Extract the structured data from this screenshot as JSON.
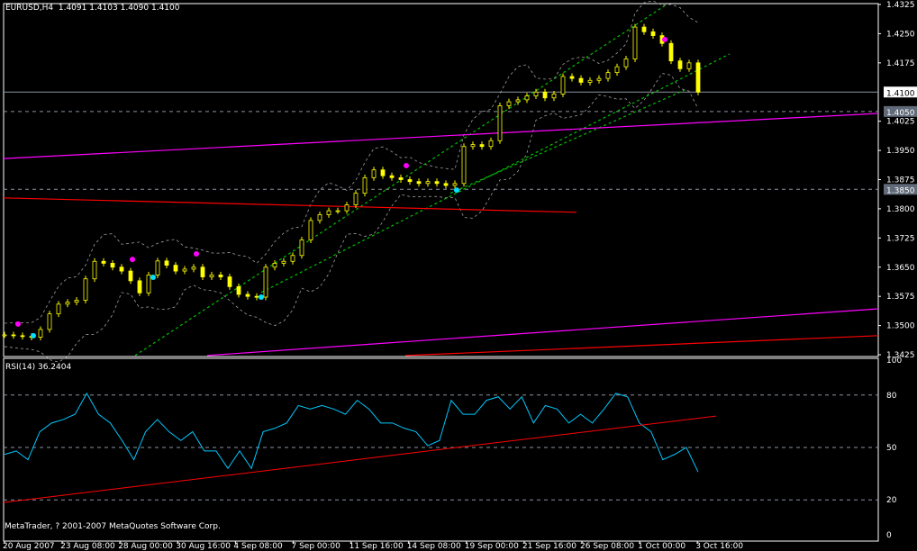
{
  "header": {
    "symbol": "EURUSD,H4",
    "open": "1.4091",
    "high": "1.4103",
    "low": "1.4090",
    "close": "1.4100"
  },
  "rsi_header": {
    "label": "RSI(14)",
    "value": "36.2404"
  },
  "copyright": "MetaTrader, ? 2001-2007 MetaQuotes Software Corp.",
  "colors": {
    "background": "#000000",
    "candle": "#ffff00",
    "grid": "#ffffff",
    "bands": "#a0a0a0",
    "channel": "#00c000",
    "support_magenta": "#ff00ff",
    "trend_red": "#ff0000",
    "rsi": "#00c8ff",
    "dot_magenta": "#ff00ff",
    "dot_cyan": "#00e0ff"
  },
  "chart_data": [
    {
      "type": "candlestick",
      "symbol": "EURUSD",
      "timeframe": "H4",
      "ylim": [
        1.3425,
        1.4325
      ],
      "y_ticks": [
        "1.4325",
        "1.4250",
        "1.4175",
        "1.4025",
        "1.3950",
        "1.3875",
        "1.3800",
        "1.3725",
        "1.3650",
        "1.3575",
        "1.3500",
        "1.3425"
      ],
      "price_labels": {
        "current": "1.4100",
        "level_1": "1.4050",
        "level_2": "1.3850"
      },
      "x_ticks": [
        "20 Aug 2007",
        "23 Aug 08:00",
        "28 Aug 00:00",
        "30 Aug 16:00",
        "4 Sep 08:00",
        "7 Sep 00:00",
        "11 Sep 16:00",
        "14 Sep 08:00",
        "19 Sep 00:00",
        "21 Sep 16:00",
        "26 Sep 08:00",
        "1 Oct 00:00",
        "3 Oct 16:00"
      ],
      "closes": [
        1.3476,
        1.3474,
        1.3472,
        1.347,
        1.349,
        1.353,
        1.3555,
        1.356,
        1.3565,
        1.362,
        1.3665,
        1.366,
        1.365,
        1.364,
        1.3615,
        1.3584,
        1.363,
        1.3666,
        1.3655,
        1.364,
        1.3645,
        1.365,
        1.3625,
        1.363,
        1.3625,
        1.36,
        1.358,
        1.3575,
        1.3573,
        1.365,
        1.366,
        1.3665,
        1.368,
        1.372,
        1.377,
        1.3785,
        1.3795,
        1.3795,
        1.381,
        1.384,
        1.388,
        1.39,
        1.3885,
        1.388,
        1.3875,
        1.387,
        1.3865,
        1.387,
        1.3865,
        1.386,
        1.3865,
        1.396,
        1.3965,
        1.396,
        1.3975,
        1.4065,
        1.4075,
        1.408,
        1.409,
        1.41,
        1.4085,
        1.4095,
        1.414,
        1.4135,
        1.4125,
        1.413,
        1.4135,
        1.415,
        1.4165,
        1.4185,
        1.4267,
        1.4255,
        1.4245,
        1.4225,
        1.418,
        1.416,
        1.4175,
        1.41
      ],
      "horizontal_levels": [
        {
          "price": 1.41,
          "style": "solid"
        },
        {
          "price": 1.405,
          "style": "dashed"
        },
        {
          "price": 1.385,
          "style": "dashed"
        }
      ],
      "trendlines": [
        {
          "color": "channel",
          "dashed": true,
          "from": [
            14.5,
            1.3423
          ],
          "to": [
            73.5,
            1.4325
          ]
        },
        {
          "color": "channel",
          "dashed": true,
          "from": [
            28.5,
            1.3585
          ],
          "to": [
            80.5,
            1.4198
          ]
        },
        {
          "color": "channel",
          "dashed": true,
          "from": [
            49.5,
            1.384
          ],
          "to": [
            75.5,
            1.4105
          ]
        },
        {
          "color": "support_magenta",
          "dashed": false,
          "from": [
            -0.1,
            1.3929
          ],
          "to": [
            97,
            1.4045
          ]
        },
        {
          "color": "support_magenta",
          "dashed": false,
          "from": [
            22.5,
            1.3423
          ],
          "to": [
            97,
            1.3543
          ]
        },
        {
          "color": "trend_red",
          "dashed": false,
          "from": [
            -0.1,
            1.3828
          ],
          "to": [
            63.5,
            1.3791
          ]
        },
        {
          "color": "trend_red",
          "dashed": false,
          "from": [
            44.5,
            1.3423
          ],
          "to": [
            97,
            1.3474
          ]
        }
      ],
      "fractals_up": [
        [
          1.5,
          1.3504
        ],
        [
          14.2,
          1.367
        ],
        [
          21.3,
          1.3684
        ],
        [
          44.6,
          1.3911
        ],
        [
          73.3,
          1.4235
        ]
      ],
      "fractals_down": [
        [
          3.2,
          1.3474
        ],
        [
          16.5,
          1.3624
        ],
        [
          28.5,
          1.3573
        ],
        [
          50.2,
          1.3848
        ]
      ]
    },
    {
      "type": "line",
      "name": "RSI(14)",
      "ylim": [
        0,
        100
      ],
      "y_ticks": [
        "100",
        "80",
        "50",
        "20",
        "0"
      ],
      "levels": [
        80,
        50,
        20
      ],
      "values": [
        46,
        48,
        43,
        59,
        64,
        66,
        69,
        81,
        69,
        64,
        54,
        43,
        59,
        66,
        59,
        54,
        59,
        48,
        48,
        38,
        48,
        38,
        59,
        61,
        64,
        74,
        72,
        74,
        72,
        69,
        77,
        72,
        64,
        64,
        61,
        59,
        51,
        54,
        77,
        69,
        69,
        77,
        79,
        72,
        79,
        64,
        74,
        72,
        64,
        69,
        64,
        72,
        81,
        79,
        64,
        59,
        43,
        46,
        50,
        36
      ],
      "trendline": {
        "from": [
          -0.1,
          18.5
        ],
        "to": [
          79,
          68
        ]
      }
    }
  ]
}
